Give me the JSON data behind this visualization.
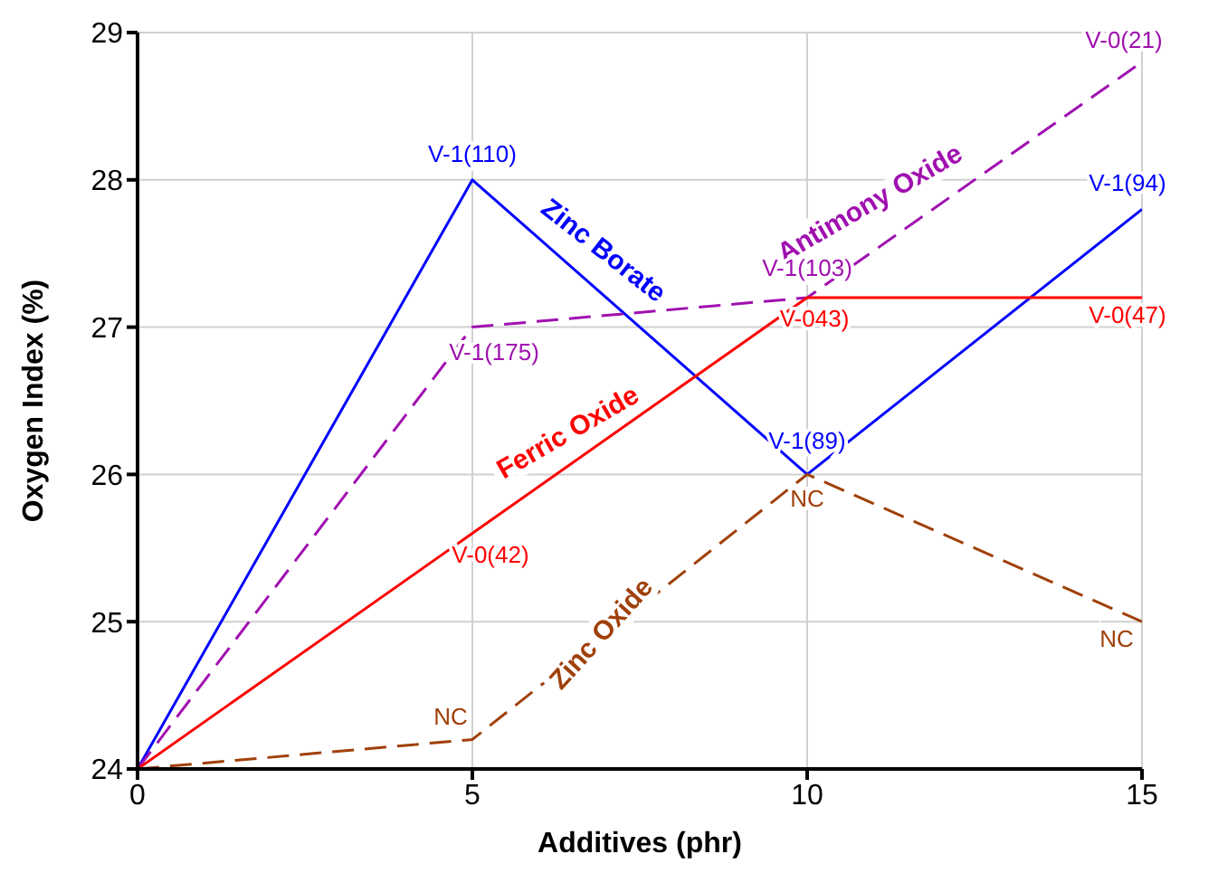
{
  "chart_data": {
    "type": "line",
    "xlabel": "Additives (phr)",
    "ylabel": "Oxygen Index (%)",
    "x": [
      0,
      5,
      10,
      15
    ],
    "xlim": [
      0,
      15
    ],
    "xticks": [
      0,
      5,
      10,
      15
    ],
    "ylim": [
      24,
      29
    ],
    "yticks": [
      24,
      25,
      26,
      27,
      28,
      29
    ],
    "grid": true,
    "legend": false,
    "marker": "none",
    "series": [
      {
        "name": "Zinc Borate",
        "color": "#0000ff",
        "line_style": "solid",
        "values": [
          24,
          28,
          26,
          27.8
        ],
        "value_labels": [
          null,
          "V-1(110)",
          "V-1(89)",
          "V-1(94)"
        ]
      },
      {
        "name": "Antimony Oxide",
        "color": "#a010b0",
        "line_style": "dashed",
        "values": [
          24,
          27,
          27.2,
          28.8
        ],
        "value_labels": [
          null,
          "V-1(175)",
          "V-1(103)",
          "V-0(21)"
        ]
      },
      {
        "name": "Ferric Oxide",
        "color": "#ff0000",
        "line_style": "solid",
        "values": [
          24,
          25.6,
          27.2,
          27.2
        ],
        "value_labels": [
          null,
          "V-0(42)",
          "V-043)",
          "V-0(47)"
        ]
      },
      {
        "name": "Zinc Oxide",
        "color": "#a0400a",
        "line_style": "dashed",
        "values": [
          24,
          24.2,
          26,
          25
        ],
        "value_labels": [
          null,
          "NC",
          "NC",
          "NC"
        ]
      }
    ]
  }
}
